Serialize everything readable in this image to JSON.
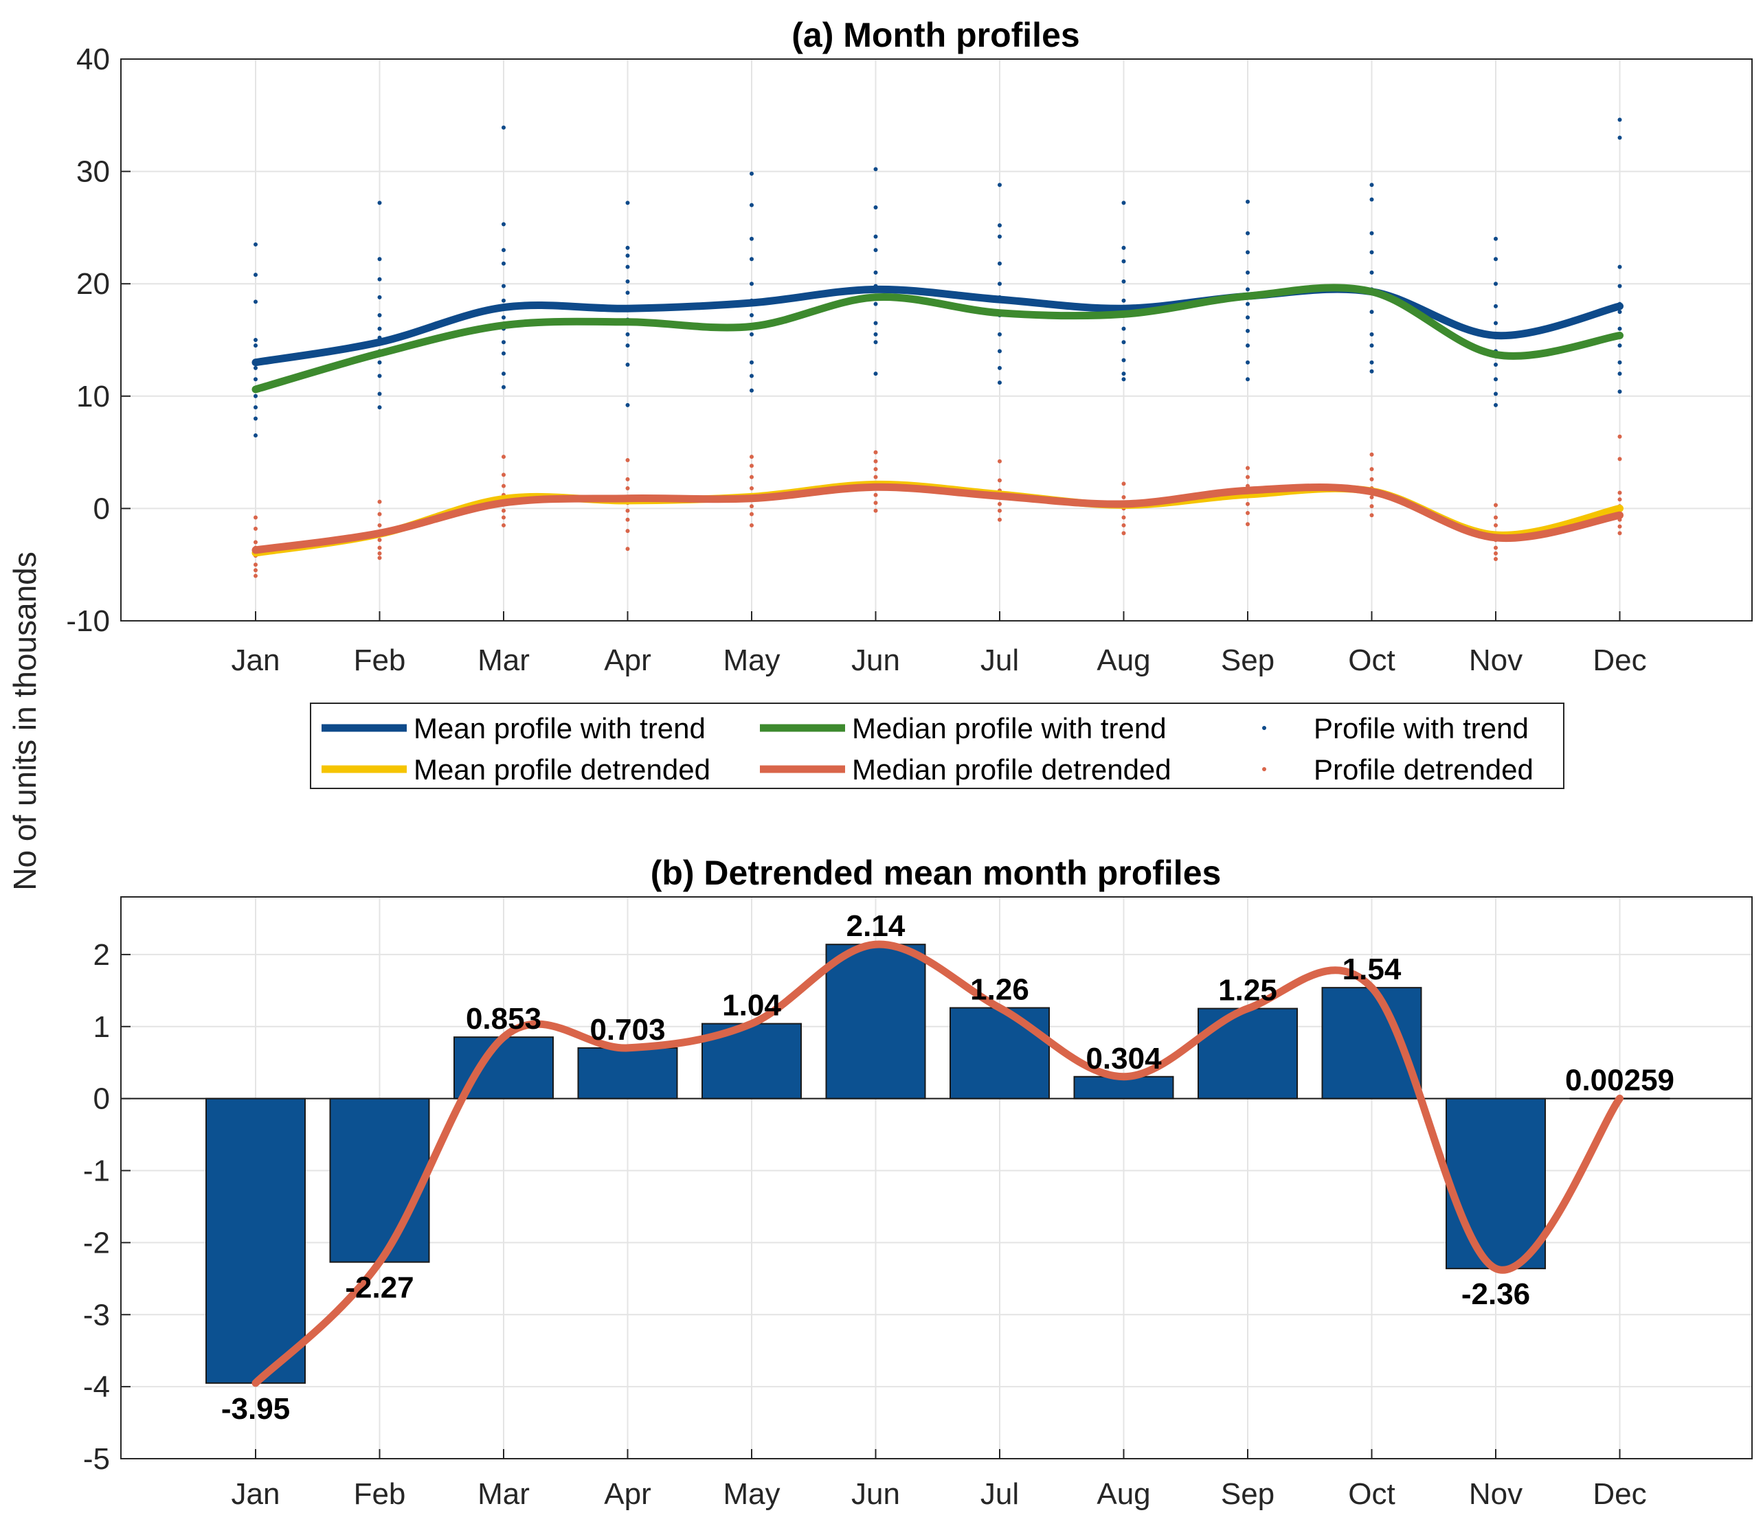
{
  "figure": {
    "ylabel": "No of units in thousands"
  },
  "chart_data": [
    {
      "type": "line",
      "title": "(a) Month profiles",
      "categories": [
        "Jan",
        "Feb",
        "Mar",
        "Apr",
        "May",
        "Jun",
        "Jul",
        "Aug",
        "Sep",
        "Oct",
        "Nov",
        "Dec"
      ],
      "ylim": [
        -10,
        40
      ],
      "yticks": [
        "-10",
        "0",
        "10",
        "20",
        "30",
        "40"
      ],
      "ytick_values": [
        -10,
        0,
        10,
        20,
        30,
        40
      ],
      "grid": true,
      "series": [
        {
          "name": "Mean profile with trend",
          "color": "#0e4a8a",
          "values": [
            13.0,
            14.8,
            17.9,
            17.8,
            18.3,
            19.5,
            18.6,
            17.8,
            18.9,
            19.3,
            15.4,
            18.0
          ]
        },
        {
          "name": "Median profile with trend",
          "color": "#3d8a2e",
          "values": [
            10.6,
            13.8,
            16.3,
            16.6,
            16.2,
            18.8,
            17.4,
            17.3,
            18.9,
            19.3,
            13.7,
            15.4
          ]
        },
        {
          "name": "Mean profile detrended",
          "color": "#f5c400",
          "values": [
            -3.95,
            -2.27,
            0.853,
            0.703,
            1.04,
            2.14,
            1.26,
            0.304,
            1.25,
            1.54,
            -2.36,
            0.00259
          ]
        },
        {
          "name": "Median profile detrended",
          "color": "#d9654a",
          "values": [
            -3.7,
            -2.2,
            0.5,
            0.9,
            0.9,
            1.9,
            1.1,
            0.4,
            1.6,
            1.5,
            -2.6,
            -0.6
          ]
        }
      ],
      "scatter": [
        {
          "name": "Profile with trend",
          "color": "#0e4a8a",
          "points": [
            [
              23.5,
              20.8,
              18.4,
              15.0,
              14.5,
              12.5,
              11.5,
              10.0,
              9.0,
              8.0,
              6.5
            ],
            [
              27.2,
              22.2,
              20.4,
              18.8,
              17.2,
              16.0,
              15.2,
              14.0,
              13.0,
              11.8,
              10.2,
              9.0
            ],
            [
              33.9,
              25.3,
              23.0,
              21.8,
              19.8,
              18.5,
              17.0,
              16.0,
              14.8,
              13.8,
              12.0,
              10.8
            ],
            [
              27.2,
              23.2,
              22.5,
              21.5,
              20.2,
              19.2,
              17.8,
              16.8,
              15.5,
              14.5,
              12.8,
              9.2
            ],
            [
              29.8,
              27.0,
              24.0,
              22.2,
              20.0,
              18.5,
              17.2,
              15.5,
              13.0,
              11.8,
              10.5
            ],
            [
              30.2,
              26.8,
              24.2,
              23.0,
              21.0,
              19.8,
              18.2,
              16.5,
              15.5,
              14.8,
              12.0
            ],
            [
              28.8,
              25.2,
              24.2,
              21.8,
              20.0,
              18.8,
              17.2,
              15.5,
              14.0,
              12.5,
              11.2
            ],
            [
              27.2,
              23.2,
              22.0,
              20.2,
              18.5,
              17.2,
              16.0,
              14.8,
              13.2,
              12.0,
              11.5
            ],
            [
              27.3,
              24.5,
              22.8,
              21.0,
              19.5,
              18.2,
              17.0,
              15.8,
              14.5,
              13.0,
              11.5
            ],
            [
              28.8,
              27.5,
              24.5,
              22.8,
              21.0,
              19.5,
              17.5,
              15.5,
              14.5,
              13.0,
              12.2
            ],
            [
              24.0,
              22.2,
              20.0,
              18.0,
              16.5,
              15.5,
              14.0,
              12.8,
              11.5,
              10.2,
              9.2
            ],
            [
              34.6,
              33.0,
              21.5,
              19.8,
              18.2,
              17.5,
              16.0,
              14.5,
              13.0,
              12.0,
              10.4
            ]
          ]
        },
        {
          "name": "Profile detrended",
          "color": "#d9654a",
          "points": [
            [
              -0.8,
              -1.8,
              -3.0,
              -3.5,
              -4.2,
              -5.0,
              -5.5,
              -6.0
            ],
            [
              0.6,
              -0.5,
              -1.5,
              -2.2,
              -2.8,
              -3.5,
              -4.0,
              -4.4
            ],
            [
              4.6,
              3.0,
              2.0,
              1.2,
              0.5,
              -0.2,
              -0.8,
              -1.5
            ],
            [
              4.3,
              2.6,
              1.8,
              1.0,
              0.5,
              -0.2,
              -1.0,
              -2.0,
              -3.6
            ],
            [
              4.6,
              3.8,
              2.8,
              1.8,
              1.0,
              0.2,
              -0.5,
              -1.5
            ],
            [
              5.0,
              4.2,
              3.5,
              2.8,
              2.0,
              1.2,
              0.5,
              -0.2
            ],
            [
              4.2,
              2.5,
              1.6,
              1.0,
              0.4,
              -0.2,
              -1.0
            ],
            [
              2.2,
              1.0,
              0.5,
              0.0,
              -0.8,
              -1.5,
              -2.2
            ],
            [
              3.6,
              2.8,
              2.0,
              1.2,
              0.4,
              -0.4,
              -1.4
            ],
            [
              4.8,
              3.5,
              2.6,
              1.8,
              1.0,
              0.2,
              -0.6
            ],
            [
              0.3,
              -0.8,
              -1.5,
              -2.2,
              -2.8,
              -3.5,
              -4.0,
              -4.5
            ],
            [
              6.4,
              4.4,
              1.4,
              0.8,
              0.2,
              -0.5,
              -1.0,
              -1.6,
              -2.2
            ]
          ]
        }
      ],
      "legend": {
        "placement": "below-plot",
        "entries": [
          "Mean profile with trend",
          "Median profile with trend",
          "Profile with trend",
          "Mean profile detrended",
          "Median profile detrended",
          "Profile detrended"
        ]
      }
    },
    {
      "type": "bar",
      "title": "(b) Detrended mean month profiles",
      "categories": [
        "Jan",
        "Feb",
        "Mar",
        "Apr",
        "May",
        "Jun",
        "Jul",
        "Aug",
        "Sep",
        "Oct",
        "Nov",
        "Dec"
      ],
      "values": [
        -3.95,
        -2.27,
        0.853,
        0.703,
        1.04,
        2.14,
        1.26,
        0.304,
        1.25,
        1.54,
        -2.36,
        0.00259
      ],
      "value_labels": [
        "-3.95",
        "-2.27",
        "0.853",
        "0.703",
        "1.04",
        "2.14",
        "1.26",
        "0.304",
        "1.25",
        "1.54",
        "-2.36",
        "0.00259"
      ],
      "ylim": [
        -5,
        2.8
      ],
      "yticks": [
        "-5",
        "-4",
        "-3",
        "-2",
        "-1",
        "0",
        "1",
        "2"
      ],
      "ytick_values": [
        -5,
        -4,
        -3,
        -2,
        -1,
        0,
        1,
        2
      ],
      "grid": true,
      "bar_color": "#0c5191",
      "overlay_line": {
        "color": "#d9654a",
        "values": [
          -3.95,
          -2.27,
          0.853,
          0.703,
          1.04,
          2.14,
          1.26,
          0.304,
          1.25,
          1.54,
          -2.36,
          0.00259
        ]
      }
    }
  ]
}
